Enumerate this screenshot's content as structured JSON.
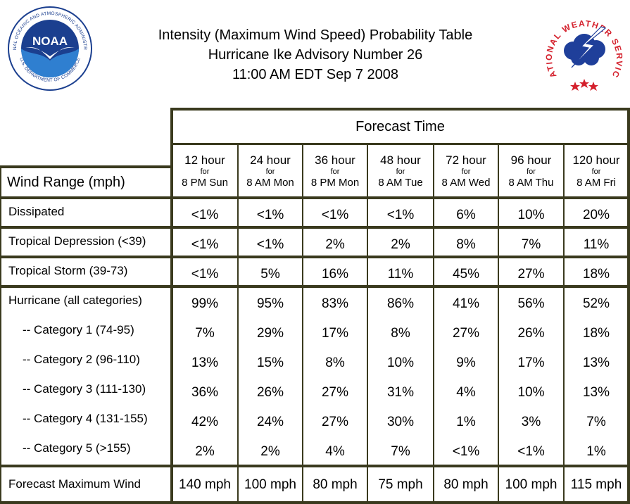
{
  "title": {
    "line1": "Intensity (Maximum Wind Speed) Probability Table",
    "line2": "Hurricane Ike Advisory Number 26",
    "line3": "11:00 AM EDT Sep 7 2008"
  },
  "logos": {
    "noaa": {
      "text": "NOAA",
      "ring_text": "NATIONAL OCEANIC AND ATMOSPHERIC ADMINISTRATION",
      "ring_text_bottom": "U.S. DEPARTMENT OF COMMERCE"
    },
    "nws": {
      "ring_text": "NATIONAL WEATHER SERVICE"
    }
  },
  "table": {
    "forecast_time_label": "Forecast Time",
    "wind_range_label": "Wind Range (mph)",
    "columns": [
      {
        "hours": "12 hour",
        "for": "for",
        "time": "8 PM Sun"
      },
      {
        "hours": "24 hour",
        "for": "for",
        "time": "8 AM Mon"
      },
      {
        "hours": "36 hour",
        "for": "for",
        "time": "8 PM Mon"
      },
      {
        "hours": "48 hour",
        "for": "for",
        "time": "8 AM Tue"
      },
      {
        "hours": "72 hour",
        "for": "for",
        "time": "8 AM Wed"
      },
      {
        "hours": "96 hour",
        "for": "for",
        "time": "8 AM Thu"
      },
      {
        "hours": "120 hour",
        "for": "for",
        "time": "8 AM Fri"
      }
    ],
    "rows": [
      {
        "label": "Dissipated",
        "values": [
          "<1%",
          "<1%",
          "<1%",
          "<1%",
          "6%",
          "10%",
          "20%"
        ]
      },
      {
        "label": "Tropical Depression (<39)",
        "values": [
          "<1%",
          "<1%",
          "2%",
          "2%",
          "8%",
          "7%",
          "11%"
        ]
      },
      {
        "label": "Tropical Storm (39-73)",
        "values": [
          "<1%",
          "5%",
          "16%",
          "11%",
          "45%",
          "27%",
          "18%"
        ]
      },
      {
        "label": "Hurricane (all categories)",
        "values": [
          "99%",
          "95%",
          "83%",
          "86%",
          "41%",
          "56%",
          "52%"
        ]
      },
      {
        "label": "-- Category 1 (74-95)",
        "values": [
          "7%",
          "29%",
          "17%",
          "8%",
          "27%",
          "26%",
          "18%"
        ]
      },
      {
        "label": "-- Category 2 (96-110)",
        "values": [
          "13%",
          "15%",
          "8%",
          "10%",
          "9%",
          "17%",
          "13%"
        ]
      },
      {
        "label": "-- Category 3 (111-130)",
        "values": [
          "36%",
          "26%",
          "27%",
          "31%",
          "4%",
          "10%",
          "13%"
        ]
      },
      {
        "label": "-- Category 4 (131-155)",
        "values": [
          "42%",
          "24%",
          "27%",
          "30%",
          "1%",
          "3%",
          "7%"
        ]
      },
      {
        "label": "-- Category 5 (>155)",
        "values": [
          "2%",
          "2%",
          "4%",
          "7%",
          "<1%",
          "<1%",
          "1%"
        ]
      },
      {
        "label": "Forecast Maximum Wind",
        "values": [
          "140 mph",
          "100 mph",
          "80 mph",
          "75 mph",
          "80 mph",
          "100 mph",
          "115 mph"
        ]
      }
    ]
  },
  "colors": {
    "border": "#3a3a1e",
    "noaa_blue": "#1b3f8f",
    "noaa_sky": "#2f7fd0",
    "nws_red": "#d4202c",
    "nws_blue": "#1f3f9a"
  }
}
